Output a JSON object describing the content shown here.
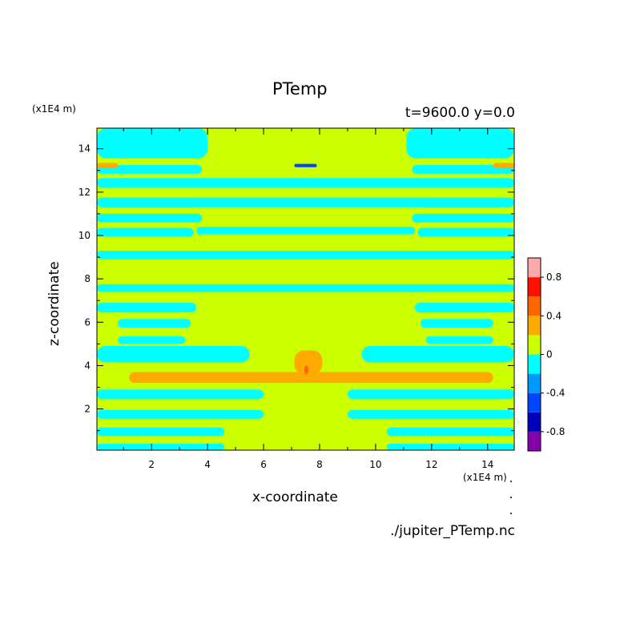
{
  "chart_data": {
    "type": "heatmap",
    "title": "PTemp",
    "subtitle": "t=9600.0 y=0.0",
    "xlabel": "x-coordinate",
    "ylabel": "z-coordinate",
    "x_unit_label": "(x1E4 m)",
    "y_unit_label": "(x1E4 m)",
    "xlim": [
      0.05,
      14.95
    ],
    "ylim": [
      0.1,
      14.95
    ],
    "x_ticks": [
      2,
      4,
      6,
      8,
      10,
      12,
      14
    ],
    "y_ticks": [
      2,
      4,
      6,
      8,
      10,
      12,
      14
    ],
    "x_tick_labels": [
      "2",
      "4",
      "6",
      "8",
      "10",
      "12",
      "14"
    ],
    "y_tick_labels": [
      "2",
      "4",
      "6",
      "8",
      "10",
      "12",
      "14"
    ],
    "background_level": 0.1,
    "colorbar": {
      "levels": [
        -1.0,
        -0.8,
        -0.6,
        -0.4,
        -0.2,
        0,
        0.2,
        0.4,
        0.6,
        0.8,
        1.0
      ],
      "colors": [
        "#8800aa",
        "#0000bb",
        "#0044ff",
        "#0099ff",
        "#00ffff",
        "#ccff00",
        "#ffaa00",
        "#ff6600",
        "#ff1100",
        "#ffaaaa"
      ],
      "tick_values": [
        -0.8,
        -0.4,
        0,
        0.4,
        0.8
      ],
      "tick_labels": [
        "-0.8",
        "-0.4",
        "0",
        "0.4",
        "0.8"
      ]
    },
    "regions": [
      {
        "level": -0.1,
        "x": [
          0.05,
          4.0
        ],
        "z": [
          13.55,
          14.95
        ]
      },
      {
        "level": -0.1,
        "x": [
          11.1,
          14.95
        ],
        "z": [
          13.55,
          14.95
        ]
      },
      {
        "level": -0.1,
        "x": [
          0.05,
          3.8
        ],
        "z": [
          12.85,
          13.25
        ]
      },
      {
        "level": -0.1,
        "x": [
          11.3,
          14.95
        ],
        "z": [
          12.85,
          13.25
        ]
      },
      {
        "level": -0.1,
        "x": [
          0.05,
          14.95
        ],
        "z": [
          12.2,
          12.65
        ]
      },
      {
        "level": -0.1,
        "x": [
          0.05,
          14.95
        ],
        "z": [
          11.3,
          11.75
        ]
      },
      {
        "level": -0.1,
        "x": [
          0.05,
          3.8
        ],
        "z": [
          10.6,
          11.0
        ]
      },
      {
        "level": -0.1,
        "x": [
          11.3,
          14.95
        ],
        "z": [
          10.6,
          11.0
        ]
      },
      {
        "level": -0.1,
        "x": [
          0.05,
          3.5
        ],
        "z": [
          9.95,
          10.35
        ]
      },
      {
        "level": -0.1,
        "x": [
          11.5,
          14.95
        ],
        "z": [
          9.95,
          10.35
        ]
      },
      {
        "level": -0.1,
        "x": [
          3.6,
          11.4
        ],
        "z": [
          10.05,
          10.4
        ]
      },
      {
        "level": -0.1,
        "x": [
          0.05,
          14.95
        ],
        "z": [
          8.9,
          9.3
        ]
      },
      {
        "level": -0.1,
        "x": [
          0.05,
          14.95
        ],
        "z": [
          7.4,
          7.75
        ]
      },
      {
        "level": -0.1,
        "x": [
          0.05,
          3.6
        ],
        "z": [
          6.45,
          6.9
        ]
      },
      {
        "level": -0.1,
        "x": [
          11.4,
          14.95
        ],
        "z": [
          6.45,
          6.9
        ]
      },
      {
        "level": -0.1,
        "x": [
          0.8,
          3.4
        ],
        "z": [
          5.75,
          6.15
        ]
      },
      {
        "level": -0.1,
        "x": [
          11.6,
          14.2
        ],
        "z": [
          5.75,
          6.15
        ]
      },
      {
        "level": -0.1,
        "x": [
          0.8,
          3.2
        ],
        "z": [
          5.0,
          5.35
        ]
      },
      {
        "level": -0.1,
        "x": [
          11.8,
          14.2
        ],
        "z": [
          5.0,
          5.35
        ]
      },
      {
        "level": -0.1,
        "x": [
          0.05,
          5.5
        ],
        "z": [
          4.15,
          4.9
        ]
      },
      {
        "level": -0.1,
        "x": [
          9.5,
          14.95
        ],
        "z": [
          4.15,
          4.9
        ]
      },
      {
        "level": 0.3,
        "x": [
          1.2,
          14.2
        ],
        "z": [
          3.2,
          3.7
        ]
      },
      {
        "level": 0.3,
        "x": [
          7.1,
          8.1
        ],
        "z": [
          3.6,
          4.7
        ]
      },
      {
        "level": 0.5,
        "x": [
          7.45,
          7.6
        ],
        "z": [
          3.6,
          4.0
        ]
      },
      {
        "level": -0.1,
        "x": [
          0.05,
          6.0
        ],
        "z": [
          2.45,
          2.9
        ]
      },
      {
        "level": -0.1,
        "x": [
          9.0,
          14.95
        ],
        "z": [
          2.45,
          2.9
        ]
      },
      {
        "level": -0.1,
        "x": [
          0.05,
          6.0
        ],
        "z": [
          1.55,
          1.95
        ]
      },
      {
        "level": -0.1,
        "x": [
          9.0,
          14.95
        ],
        "z": [
          1.55,
          1.95
        ]
      },
      {
        "level": -0.1,
        "x": [
          0.05,
          4.6
        ],
        "z": [
          0.75,
          1.15
        ]
      },
      {
        "level": -0.1,
        "x": [
          10.4,
          14.95
        ],
        "z": [
          0.75,
          1.15
        ]
      },
      {
        "level": -0.1,
        "x": [
          0.05,
          4.6
        ],
        "z": [
          0.1,
          0.4
        ]
      },
      {
        "level": -0.1,
        "x": [
          10.4,
          14.95
        ],
        "z": [
          0.1,
          0.4
        ]
      },
      {
        "level": 0.3,
        "x": [
          0.05,
          0.8
        ],
        "z": [
          13.1,
          13.35
        ]
      },
      {
        "level": 0.3,
        "x": [
          14.2,
          14.95
        ],
        "z": [
          13.1,
          13.35
        ]
      },
      {
        "level": -0.5,
        "x": [
          7.1,
          7.9
        ],
        "z": [
          13.15,
          13.3
        ]
      }
    ]
  },
  "labels": {
    "source": "./jupiter_PTemp.nc"
  }
}
